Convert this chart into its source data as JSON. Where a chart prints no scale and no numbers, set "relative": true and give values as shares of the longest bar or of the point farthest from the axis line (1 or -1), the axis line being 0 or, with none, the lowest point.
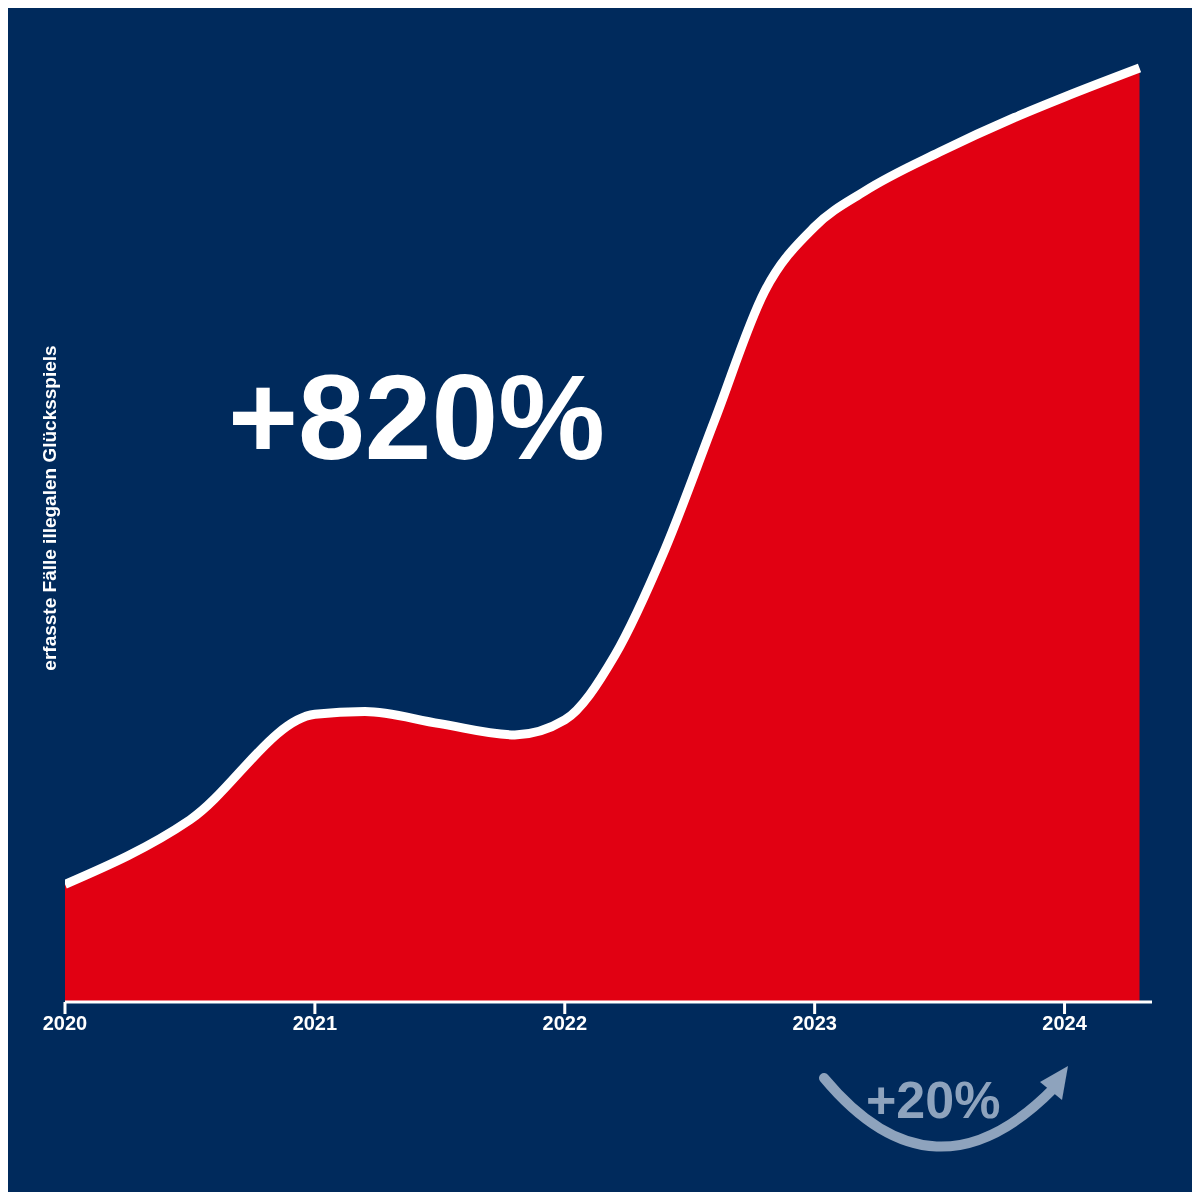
{
  "chart_data": {
    "type": "area",
    "relative": true,
    "ylabel": "erfasste Fälle illegalen Glücksspiels",
    "x": [
      2020,
      2020.5,
      2021,
      2021.2,
      2021.5,
      2021.8,
      2022,
      2022.2,
      2022.4,
      2022.6,
      2022.8,
      2023,
      2023.2,
      2023.5,
      2023.8,
      2024,
      2024.3
    ],
    "series": [
      {
        "color": "#e10012",
        "values": [
          0.126,
          0.195,
          0.308,
          0.311,
          0.298,
          0.286,
          0.302,
          0.371,
          0.484,
          0.623,
          0.761,
          0.83,
          0.868,
          0.91,
          0.947,
          0.969,
          1.0
        ]
      }
    ],
    "xlim": [
      2020,
      2024.35
    ],
    "xticks": [
      2020,
      2021,
      2022,
      2023,
      2024
    ],
    "annotations": [
      "+820%",
      "+20%"
    ],
    "grid": false,
    "legend": false
  }
}
